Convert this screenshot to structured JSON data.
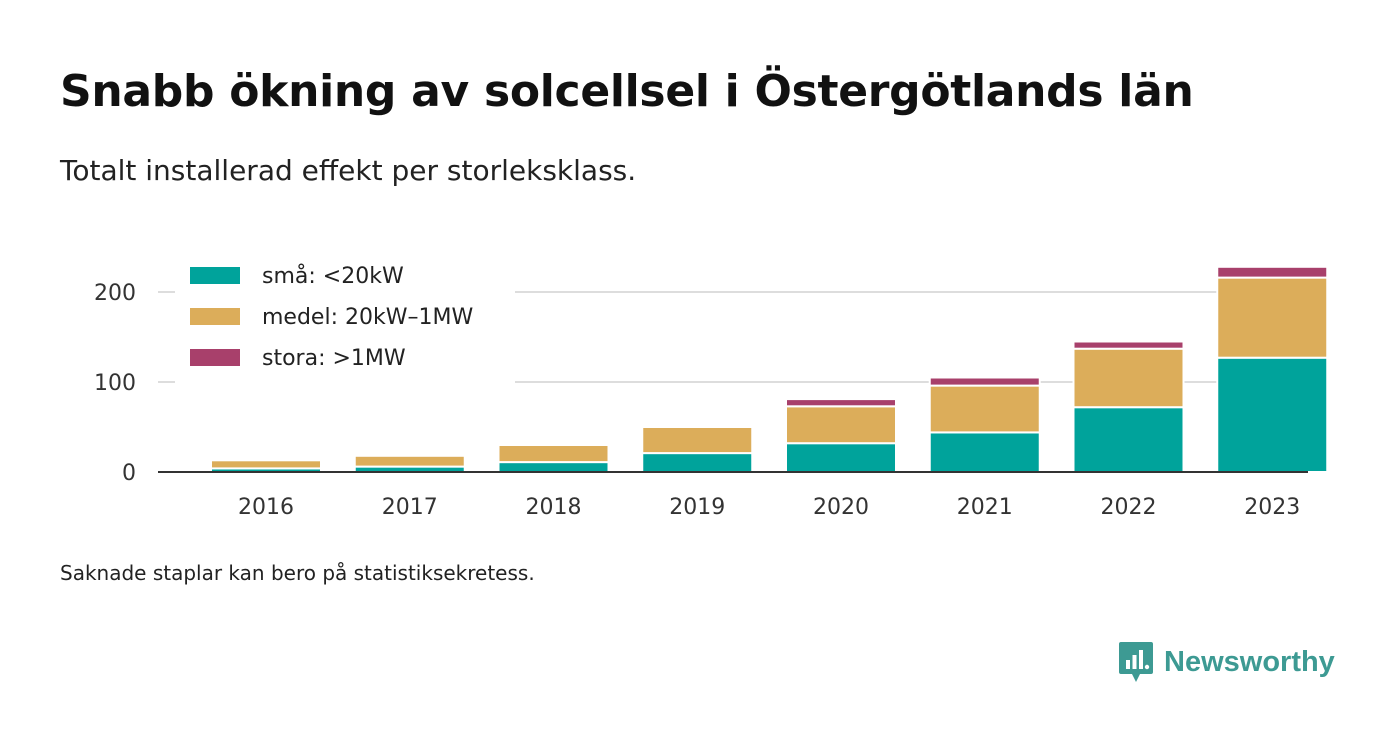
{
  "title": "Snabb ökning av solcellsel i Östergötlands län",
  "subtitle": "Totalt installerad effekt per storleksklass.",
  "footnote": "Saknade staplar kan bero på statistiksekretess.",
  "brand": {
    "name": "Newsworthy",
    "icon": "newsworthy-logo-icon",
    "color": "#3d9a93"
  },
  "chart_data": {
    "type": "bar",
    "stacked": true,
    "categories": [
      "2016",
      "2017",
      "2018",
      "2019",
      "2020",
      "2021",
      "2022",
      "2023"
    ],
    "series": [
      {
        "name": "små: <20kW",
        "color": "#00a39b",
        "values": [
          4,
          6,
          11,
          21,
          32,
          44,
          72,
          127
        ]
      },
      {
        "name": "medel: 20kW–1MW",
        "color": "#dcad5a",
        "values": [
          9,
          12,
          19,
          29,
          41,
          52,
          65,
          89
        ]
      },
      {
        "name": "stora: >1MW",
        "color": "#a8406b",
        "values": [
          0,
          0,
          0,
          0,
          8,
          9,
          8,
          12
        ]
      }
    ],
    "yticks": [
      0,
      100,
      200
    ],
    "ylim": [
      0,
      230
    ],
    "grid": true,
    "legend": "top-left"
  }
}
